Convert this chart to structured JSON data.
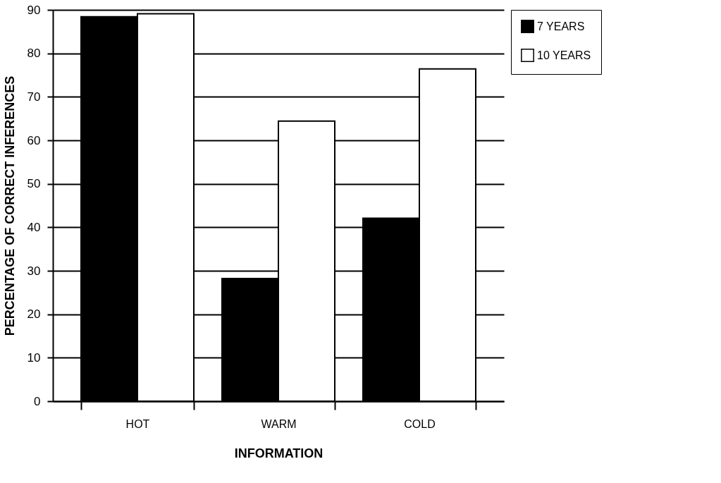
{
  "chart_data": {
    "type": "bar",
    "xlabel": "INFORMATION",
    "ylabel": "PERCENTAGE OF CORRECT INFERENCES",
    "categories": [
      "HOT",
      "WARM",
      "COLD"
    ],
    "series": [
      {
        "name": "7 YEARS",
        "color": "#000000",
        "values": [
          88.4,
          28.2,
          42.1
        ]
      },
      {
        "name": "10 YEARS",
        "color": "#ffffff",
        "values": [
          89.1,
          64.4,
          76.4
        ]
      }
    ],
    "ylim": [
      0,
      90
    ],
    "yticks": [
      0,
      10,
      20,
      30,
      40,
      50,
      60,
      70,
      80,
      90
    ],
    "grid": "y",
    "legend": "right"
  }
}
